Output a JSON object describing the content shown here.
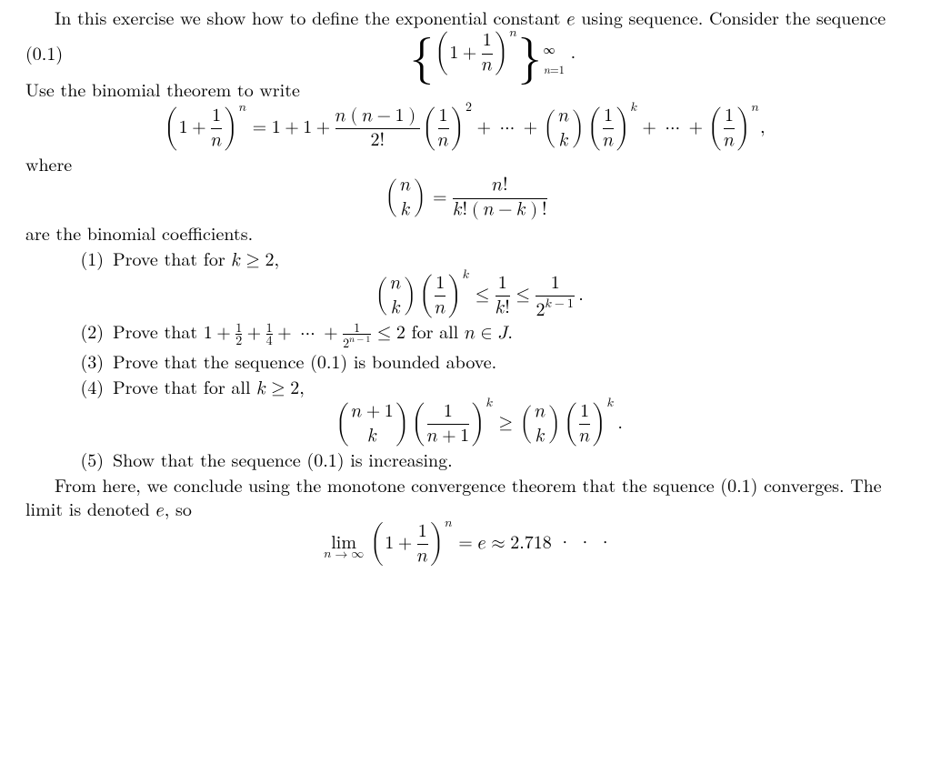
{
  "colors": {
    "text": "#000000",
    "background": "#ffffff"
  },
  "font": {
    "family": "Computer Modern / Latin Modern (serif)",
    "body_size_pt": 15
  },
  "intro1": "In this exercise we show how to define the exponential constant ",
  "intro2": " using sequence. Consider the sequence",
  "eq_label": "(0.1)",
  "line_use": "Use the binomial theorem to write",
  "line_where": "where",
  "line_binom_coeff": "are the binomial coefficients.",
  "items": {
    "i1": {
      "num": "(1)",
      "pre": "Prove that for ",
      "cond": "k \\ge 2,",
      "post": ","
    },
    "i2": {
      "num": "(2)",
      "pre": "Prove that ",
      "post": " for all ",
      "tail": "."
    },
    "i3": {
      "num": "(3)",
      "text": "Prove that the sequence (0.1) is bounded above."
    },
    "i4": {
      "num": "(4)",
      "pre": "Prove that for all ",
      "cond": "k \\ge 2,",
      "post": ","
    },
    "i5": {
      "num": "(5)",
      "text": "Show that the sequence (0.1) is increasing."
    }
  },
  "concl1": "From here, we conclude using the monotone convergence theorem that the squence (0.1) converges. The limit is denoted ",
  "concl2": ", so",
  "e_approx": "2.718",
  "math": {
    "seq_def": "\\{(1 + 1/n)^n\\}_{n=1}^{\\infty}",
    "binom_expand": "(1+1/n)^n = 1 + 1 + n(n-1)/2! (1/n)^2 + ... + C(n,k)(1/n)^k + ... + (1/n)^n",
    "binom_def": "C(n,k) = n! / (k!(n-k)!)",
    "ineq1": "C(n,k)(1/n)^k \\le 1/k! \\le 1/2^{k-1}",
    "geom_sum": "1 + 1/2 + 1/4 + ... + 1/2^{n-1} \\le 2",
    "ineq4": "C(n+1,k)(1/(n+1))^k \\ge C(n,k)(1/n)^k",
    "limit": "lim_{n->infty} (1+1/n)^n = e \\approx 2.718..."
  }
}
